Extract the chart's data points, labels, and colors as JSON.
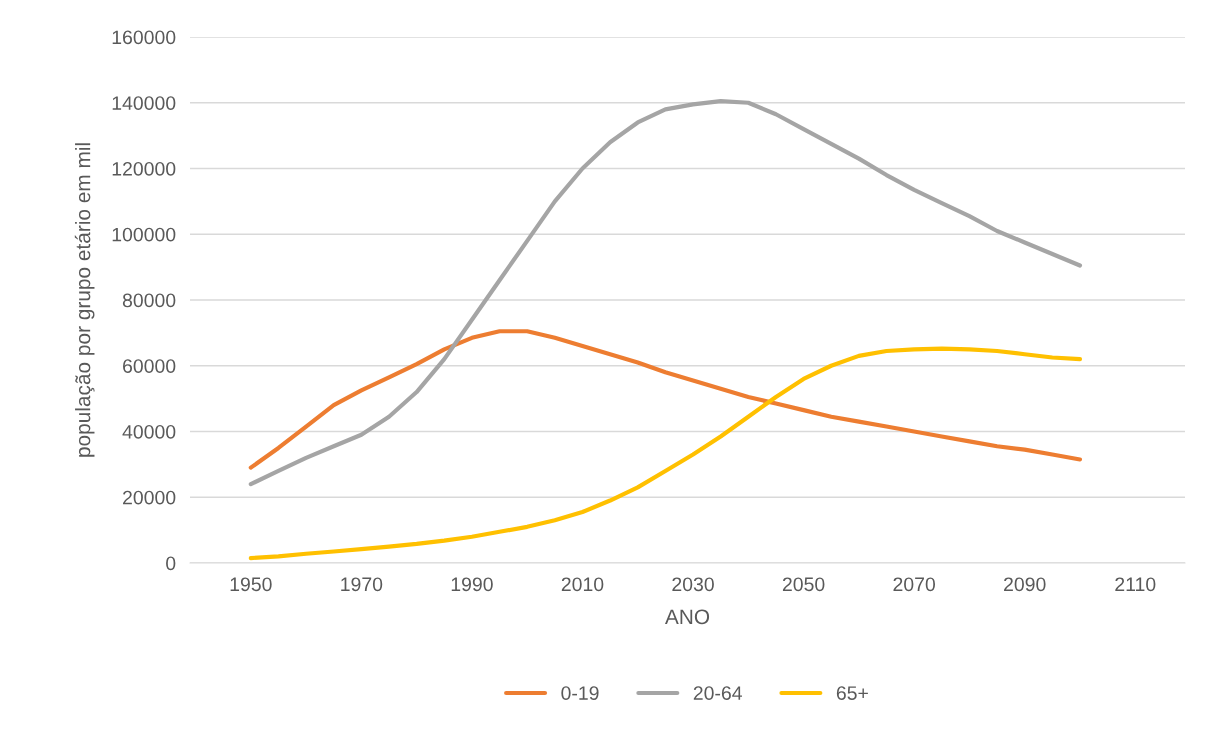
{
  "chart_data": {
    "type": "line",
    "xlabel": "ANO",
    "ylabel": "população por grupo etário em mil",
    "x": [
      1950,
      1955,
      1960,
      1965,
      1970,
      1975,
      1980,
      1985,
      1990,
      1995,
      2000,
      2005,
      2010,
      2015,
      2020,
      2025,
      2030,
      2035,
      2040,
      2045,
      2050,
      2055,
      2060,
      2065,
      2070,
      2075,
      2080,
      2085,
      2090,
      2095,
      2100
    ],
    "series": [
      {
        "name": "0-19",
        "color": "#ed7d31",
        "values": [
          29000,
          35000,
          41500,
          48000,
          52500,
          56500,
          60500,
          65000,
          68500,
          70500,
          70500,
          68500,
          66000,
          63500,
          61000,
          58000,
          55500,
          53000,
          50500,
          48500,
          46500,
          44500,
          43000,
          41500,
          40000,
          38500,
          37000,
          35500,
          34500,
          33000,
          31500
        ]
      },
      {
        "name": "20-64",
        "color": "#a5a5a5",
        "values": [
          24000,
          28000,
          32000,
          35500,
          39000,
          44500,
          52000,
          62000,
          74000,
          86000,
          98000,
          110000,
          120000,
          128000,
          134000,
          138000,
          139500,
          140500,
          140000,
          136500,
          132000,
          127500,
          123000,
          118000,
          113500,
          109500,
          105500,
          101000,
          97500,
          94000,
          90500
        ]
      },
      {
        "name": "65+",
        "color": "#ffc000",
        "values": [
          1500,
          2000,
          2800,
          3500,
          4200,
          5000,
          5800,
          6800,
          8000,
          9500,
          11000,
          13000,
          15500,
          19000,
          23000,
          28000,
          33000,
          38500,
          44500,
          50500,
          56000,
          60000,
          63000,
          64500,
          65000,
          65200,
          65000,
          64500,
          63500,
          62500,
          62000
        ]
      }
    ],
    "xlim": [
      1939,
      2119
    ],
    "xticks": [
      1950,
      1970,
      1990,
      2010,
      2030,
      2050,
      2070,
      2090,
      2110
    ],
    "ylim": [
      0,
      160000
    ],
    "yticks": [
      0,
      20000,
      40000,
      60000,
      80000,
      100000,
      120000,
      140000,
      160000
    ],
    "grid": "y",
    "legend": "bottom",
    "marker": "none",
    "line_style": "solid"
  }
}
